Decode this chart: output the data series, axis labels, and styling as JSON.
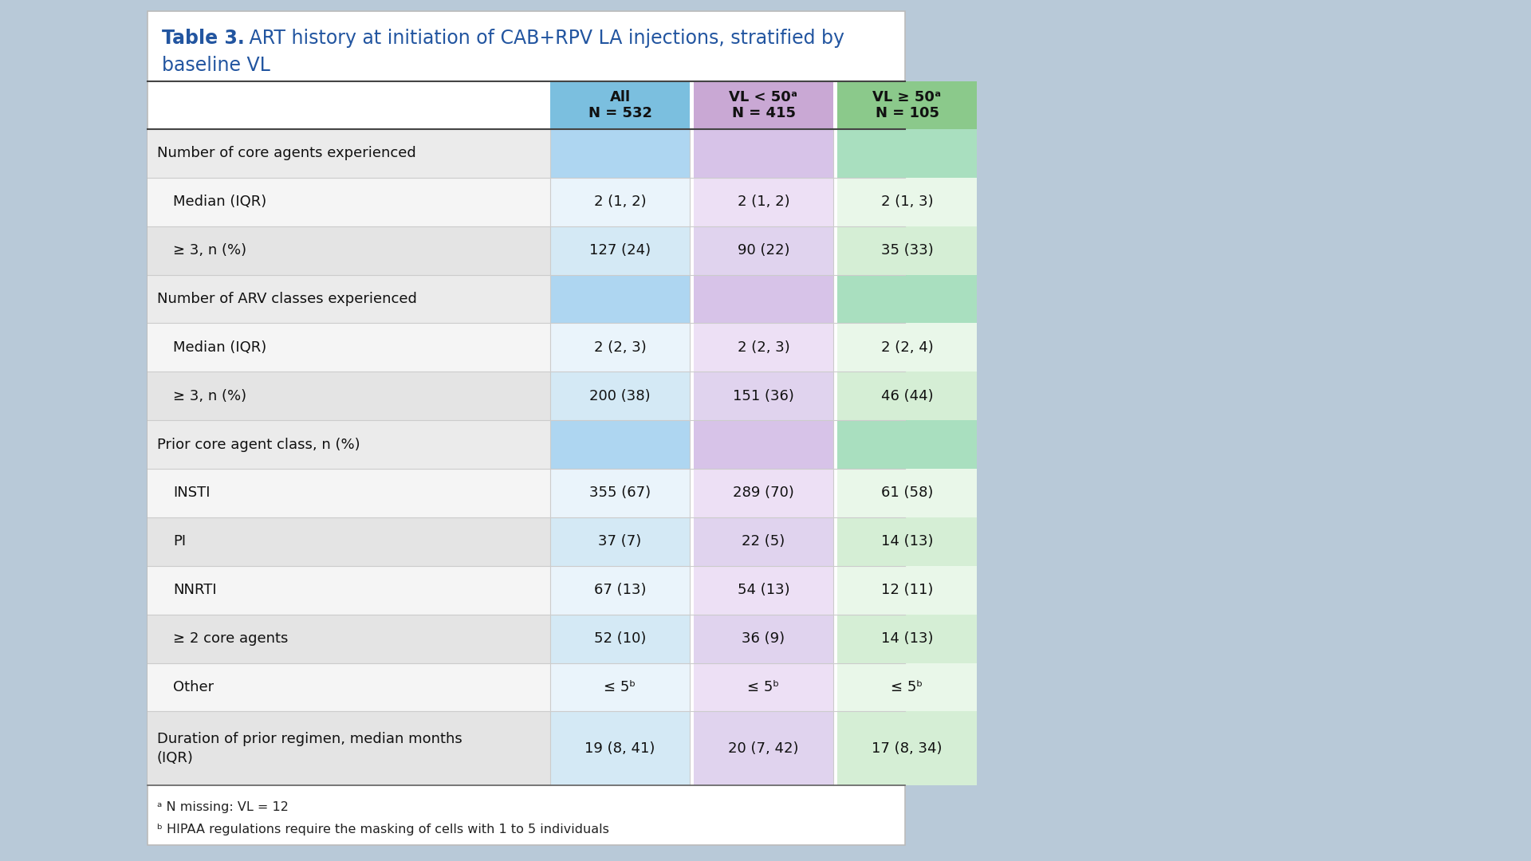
{
  "title": "Table 3. ART history at initiation of CAB+RPV LA injections, stratified by\nbaseline VL",
  "col_headers": [
    [
      "All",
      "N = 532"
    ],
    [
      "VL < 50ᵃ",
      "N = 415"
    ],
    [
      "VL ≥ 50ᵃ",
      "N = 105"
    ]
  ],
  "col_header_colors": [
    "#7BBFDF",
    "#C9A8D4",
    "#8BC98B"
  ],
  "col_header_light": [
    "#AED6F1",
    "#D7C3E8",
    "#A9DFBF"
  ],
  "rows": [
    {
      "label": "Number of core agents experienced",
      "indent": false,
      "section_header": true,
      "values": [
        "",
        "",
        ""
      ],
      "label_color": "#EBEBEB",
      "cell_colors": [
        "#AED6F1",
        "#D7C3E8",
        "#A9DFBF"
      ]
    },
    {
      "label": "Median (IQR)",
      "indent": true,
      "section_header": false,
      "values": [
        "2 (1, 2)",
        "2 (1, 2)",
        "2 (1, 3)"
      ],
      "label_color": "#F5F5F5",
      "cell_colors": [
        "#EAF4FB",
        "#EDE0F5",
        "#E9F7E9"
      ]
    },
    {
      "label": "≥ 3, n (%)",
      "indent": true,
      "section_header": false,
      "values": [
        "127 (24)",
        "90 (22)",
        "35 (33)"
      ],
      "label_color": "#E4E4E4",
      "cell_colors": [
        "#D4E9F5",
        "#E0D3EE",
        "#D5EED5"
      ]
    },
    {
      "label": "Number of ARV classes experienced",
      "indent": false,
      "section_header": true,
      "values": [
        "",
        "",
        ""
      ],
      "label_color": "#EBEBEB",
      "cell_colors": [
        "#AED6F1",
        "#D7C3E8",
        "#A9DFBF"
      ]
    },
    {
      "label": "Median (IQR)",
      "indent": true,
      "section_header": false,
      "values": [
        "2 (2, 3)",
        "2 (2, 3)",
        "2 (2, 4)"
      ],
      "label_color": "#F5F5F5",
      "cell_colors": [
        "#EAF4FB",
        "#EDE0F5",
        "#E9F7E9"
      ]
    },
    {
      "label": "≥ 3, n (%)",
      "indent": true,
      "section_header": false,
      "values": [
        "200 (38)",
        "151 (36)",
        "46 (44)"
      ],
      "label_color": "#E4E4E4",
      "cell_colors": [
        "#D4E9F5",
        "#E0D3EE",
        "#D5EED5"
      ]
    },
    {
      "label": "Prior core agent class, n (%)",
      "indent": false,
      "section_header": true,
      "values": [
        "",
        "",
        ""
      ],
      "label_color": "#EBEBEB",
      "cell_colors": [
        "#AED6F1",
        "#D7C3E8",
        "#A9DFBF"
      ]
    },
    {
      "label": "INSTI",
      "indent": true,
      "section_header": false,
      "values": [
        "355 (67)",
        "289 (70)",
        "61 (58)"
      ],
      "label_color": "#F5F5F5",
      "cell_colors": [
        "#EAF4FB",
        "#EDE0F5",
        "#E9F7E9"
      ]
    },
    {
      "label": "PI",
      "indent": true,
      "section_header": false,
      "values": [
        "37 (7)",
        "22 (5)",
        "14 (13)"
      ],
      "label_color": "#E4E4E4",
      "cell_colors": [
        "#D4E9F5",
        "#E0D3EE",
        "#D5EED5"
      ]
    },
    {
      "label": "NNRTI",
      "indent": true,
      "section_header": false,
      "values": [
        "67 (13)",
        "54 (13)",
        "12 (11)"
      ],
      "label_color": "#F5F5F5",
      "cell_colors": [
        "#EAF4FB",
        "#EDE0F5",
        "#E9F7E9"
      ]
    },
    {
      "label": "≥ 2 core agents",
      "indent": true,
      "section_header": false,
      "values": [
        "52 (10)",
        "36 (9)",
        "14 (13)"
      ],
      "label_color": "#E4E4E4",
      "cell_colors": [
        "#D4E9F5",
        "#E0D3EE",
        "#D5EED5"
      ]
    },
    {
      "label": "Other",
      "indent": true,
      "section_header": false,
      "values": [
        "≤ 5ᵇ",
        "≤ 5ᵇ",
        "≤ 5ᵇ"
      ],
      "label_color": "#F5F5F5",
      "cell_colors": [
        "#EAF4FB",
        "#EDE0F5",
        "#E9F7E9"
      ]
    },
    {
      "label": "Duration of prior regimen, median months\n(IQR)",
      "indent": false,
      "section_header": false,
      "values": [
        "19 (8, 41)",
        "20 (7, 42)",
        "17 (8, 34)"
      ],
      "label_color": "#E4E4E4",
      "cell_colors": [
        "#D4E9F5",
        "#E0D3EE",
        "#D5EED5"
      ]
    }
  ],
  "footnotes": [
    "ᵃ N missing: VL = 12",
    "ᵇ HIPAA regulations require the masking of cells with 1 to 5 individuals"
  ],
  "title_color": "#2255A0",
  "cell_text_color": "#111111",
  "bg_color": "#B8C9D8",
  "white_card_color": "#FFFFFF",
  "fig_width": 19.2,
  "fig_height": 10.8
}
